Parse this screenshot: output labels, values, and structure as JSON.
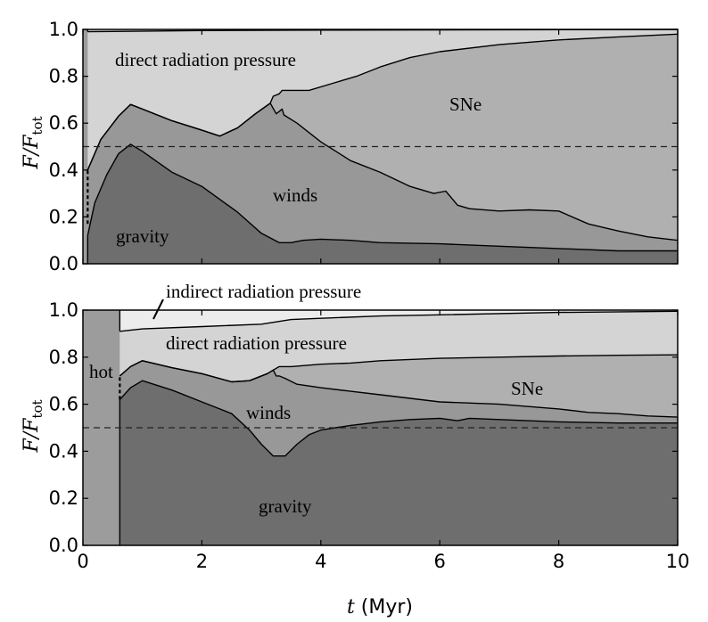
{
  "chart_data": [
    {
      "type": "area",
      "panel": "top",
      "stacked": true,
      "xlim": [
        0,
        10
      ],
      "ylim": [
        0,
        1.0
      ],
      "xticks": [
        "0",
        "2",
        "4",
        "6",
        "8",
        "10"
      ],
      "yticks": [
        "0.0",
        "0.2",
        "0.4",
        "0.6",
        "0.8",
        "1.0"
      ],
      "ylabel": {
        "main": "F/F",
        "sub": "tot"
      },
      "reference_line": {
        "y": 0.5,
        "style": "dashed"
      },
      "colors": {
        "gravity": "#6e6e6e",
        "winds": "#989898",
        "sne": "#b0b0b0",
        "direct": "#d4d4d4",
        "hot": "#9c9c9c"
      },
      "boundaries": {
        "hot_top": [
          [
            0,
            1.0
          ],
          [
            0.08,
            1.0
          ],
          [
            0.08,
            0.0
          ]
        ],
        "gravity_top": [
          [
            0.08,
            0.12
          ],
          [
            0.2,
            0.26
          ],
          [
            0.4,
            0.38
          ],
          [
            0.6,
            0.47
          ],
          [
            0.8,
            0.51
          ],
          [
            1.0,
            0.48
          ],
          [
            1.5,
            0.39
          ],
          [
            2.0,
            0.33
          ],
          [
            2.6,
            0.22
          ],
          [
            3.0,
            0.13
          ],
          [
            3.3,
            0.09
          ],
          [
            3.5,
            0.09
          ],
          [
            3.7,
            0.1
          ],
          [
            4.0,
            0.105
          ],
          [
            4.5,
            0.1
          ],
          [
            5.0,
            0.09
          ],
          [
            6.0,
            0.085
          ],
          [
            7.0,
            0.075
          ],
          [
            8.0,
            0.065
          ],
          [
            9.0,
            0.055
          ],
          [
            10.0,
            0.055
          ]
        ],
        "winds_top": [
          [
            0.08,
            0.4
          ],
          [
            0.3,
            0.53
          ],
          [
            0.6,
            0.63
          ],
          [
            0.8,
            0.68
          ],
          [
            1.0,
            0.66
          ],
          [
            1.5,
            0.61
          ],
          [
            2.0,
            0.57
          ],
          [
            2.3,
            0.545
          ],
          [
            2.6,
            0.58
          ],
          [
            2.9,
            0.64
          ],
          [
            3.15,
            0.685
          ],
          [
            3.25,
            0.64
          ],
          [
            3.35,
            0.66
          ],
          [
            3.38,
            0.635
          ],
          [
            3.6,
            0.6
          ],
          [
            4.0,
            0.52
          ],
          [
            4.5,
            0.44
          ],
          [
            5.0,
            0.39
          ],
          [
            5.5,
            0.33
          ],
          [
            5.9,
            0.3
          ],
          [
            6.1,
            0.31
          ],
          [
            6.3,
            0.25
          ],
          [
            6.5,
            0.235
          ],
          [
            7.0,
            0.225
          ],
          [
            7.5,
            0.23
          ],
          [
            8.0,
            0.225
          ],
          [
            8.5,
            0.17
          ],
          [
            9.0,
            0.14
          ],
          [
            9.5,
            0.115
          ],
          [
            10.0,
            0.1
          ]
        ],
        "sne_top": [
          [
            0.08,
            0.4
          ],
          [
            0.3,
            0.53
          ],
          [
            0.6,
            0.63
          ],
          [
            0.8,
            0.68
          ],
          [
            1.0,
            0.66
          ],
          [
            1.5,
            0.61
          ],
          [
            2.0,
            0.57
          ],
          [
            2.3,
            0.545
          ],
          [
            2.6,
            0.58
          ],
          [
            2.9,
            0.64
          ],
          [
            3.15,
            0.685
          ],
          [
            3.2,
            0.715
          ],
          [
            3.3,
            0.725
          ],
          [
            3.35,
            0.74
          ],
          [
            3.5,
            0.74
          ],
          [
            3.8,
            0.74
          ],
          [
            4.2,
            0.77
          ],
          [
            4.6,
            0.8
          ],
          [
            5.0,
            0.84
          ],
          [
            5.5,
            0.88
          ],
          [
            6.0,
            0.905
          ],
          [
            7.0,
            0.935
          ],
          [
            8.0,
            0.955
          ],
          [
            9.0,
            0.968
          ],
          [
            10.0,
            0.98
          ]
        ],
        "direct_top": [
          [
            0.08,
            0.99
          ],
          [
            2.0,
            0.995
          ],
          [
            4.0,
            0.997
          ],
          [
            10.0,
            1.0
          ]
        ]
      },
      "dashed_segment": {
        "x": 0.08,
        "y_from": 0.17,
        "y_to": 0.4
      },
      "regions": {
        "gravity": "gravity",
        "winds": "winds",
        "sne": "SNe",
        "direct": "direct radiation pressure"
      }
    },
    {
      "type": "area",
      "panel": "bottom",
      "stacked": true,
      "xlim": [
        0,
        10
      ],
      "ylim": [
        0,
        1.0
      ],
      "xticks": [
        "0",
        "2",
        "4",
        "6",
        "8",
        "10"
      ],
      "yticks": [
        "0.0",
        "0.2",
        "0.4",
        "0.6",
        "0.8",
        "1.0"
      ],
      "xlabel": {
        "var": "t",
        "unit": " (Myr)"
      },
      "ylabel": {
        "main": "F/F",
        "sub": "tot"
      },
      "reference_line": {
        "y": 0.5,
        "style": "dashed"
      },
      "colors": {
        "gravity": "#6e6e6e",
        "winds": "#989898",
        "sne": "#b0b0b0",
        "direct": "#d4d4d4",
        "indirect": "#ececec",
        "hot": "#9c9c9c"
      },
      "hot_edge_x": 0.62,
      "boundaries": {
        "gravity_top": [
          [
            0.62,
            0.62
          ],
          [
            0.8,
            0.67
          ],
          [
            1.0,
            0.7
          ],
          [
            1.5,
            0.66
          ],
          [
            2.0,
            0.61
          ],
          [
            2.5,
            0.56
          ],
          [
            2.8,
            0.49
          ],
          [
            3.0,
            0.43
          ],
          [
            3.2,
            0.38
          ],
          [
            3.4,
            0.38
          ],
          [
            3.6,
            0.43
          ],
          [
            3.8,
            0.47
          ],
          [
            4.0,
            0.49
          ],
          [
            4.5,
            0.51
          ],
          [
            5.0,
            0.525
          ],
          [
            5.5,
            0.535
          ],
          [
            6.0,
            0.54
          ],
          [
            6.3,
            0.53
          ],
          [
            6.5,
            0.54
          ],
          [
            7.0,
            0.535
          ],
          [
            8.0,
            0.525
          ],
          [
            9.0,
            0.52
          ],
          [
            10.0,
            0.52
          ]
        ],
        "winds_top": [
          [
            0.62,
            0.72
          ],
          [
            0.8,
            0.76
          ],
          [
            1.0,
            0.785
          ],
          [
            1.5,
            0.755
          ],
          [
            2.0,
            0.73
          ],
          [
            2.5,
            0.695
          ],
          [
            2.8,
            0.7
          ],
          [
            3.1,
            0.73
          ],
          [
            3.2,
            0.745
          ],
          [
            3.25,
            0.72
          ],
          [
            3.3,
            0.72
          ],
          [
            3.4,
            0.71
          ],
          [
            3.6,
            0.685
          ],
          [
            4.0,
            0.67
          ],
          [
            4.5,
            0.655
          ],
          [
            5.0,
            0.64
          ],
          [
            5.5,
            0.625
          ],
          [
            6.0,
            0.61
          ],
          [
            7.0,
            0.6
          ],
          [
            8.0,
            0.58
          ],
          [
            8.5,
            0.565
          ],
          [
            9.0,
            0.56
          ],
          [
            9.5,
            0.55
          ],
          [
            10.0,
            0.545
          ]
        ],
        "sne_top": [
          [
            0.62,
            0.72
          ],
          [
            0.8,
            0.76
          ],
          [
            1.0,
            0.785
          ],
          [
            1.5,
            0.755
          ],
          [
            2.0,
            0.73
          ],
          [
            2.5,
            0.695
          ],
          [
            2.8,
            0.7
          ],
          [
            3.1,
            0.73
          ],
          [
            3.2,
            0.745
          ],
          [
            3.3,
            0.76
          ],
          [
            3.5,
            0.76
          ],
          [
            4.0,
            0.77
          ],
          [
            4.5,
            0.775
          ],
          [
            5.0,
            0.785
          ],
          [
            6.0,
            0.795
          ],
          [
            7.0,
            0.8
          ],
          [
            8.0,
            0.805
          ],
          [
            9.0,
            0.808
          ],
          [
            10.0,
            0.81
          ]
        ],
        "direct_top": [
          [
            0.62,
            0.91
          ],
          [
            1.0,
            0.92
          ],
          [
            2.0,
            0.93
          ],
          [
            3.0,
            0.94
          ],
          [
            3.5,
            0.96
          ],
          [
            4.0,
            0.965
          ],
          [
            5.0,
            0.975
          ],
          [
            6.0,
            0.98
          ],
          [
            8.0,
            0.99
          ],
          [
            10.0,
            0.995
          ]
        ]
      },
      "dashed_segment": {
        "x": 0.62,
        "y_from": 0.62,
        "y_to": 0.72
      },
      "regions": {
        "hot": "hot",
        "gravity": "gravity",
        "winds": "winds",
        "sne": "SNe",
        "direct": "direct radiation pressure",
        "indirect": "indirect radiation pressure"
      }
    }
  ]
}
